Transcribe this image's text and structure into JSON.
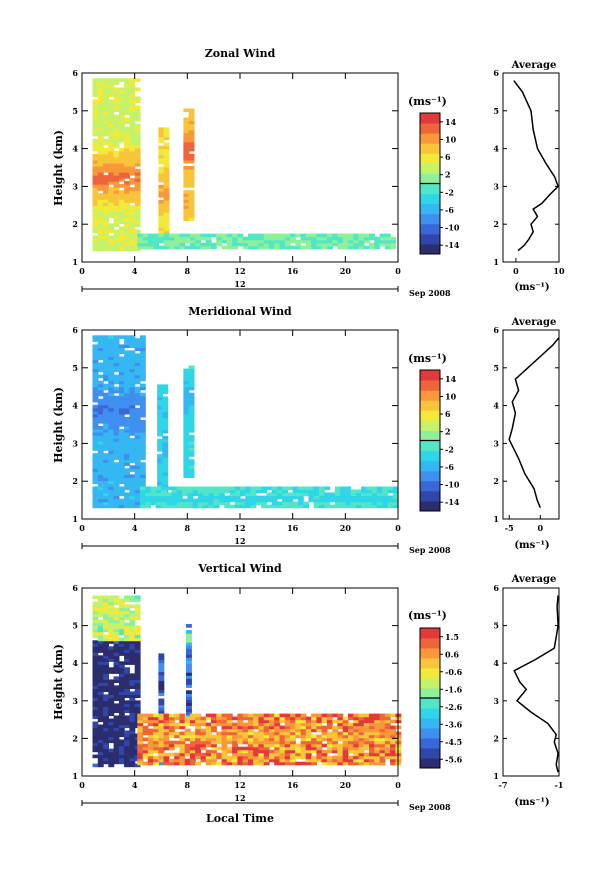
{
  "figure": {
    "date_label": "Sep 2008",
    "x_label": "Local Time",
    "colorbar_unit": "(ms⁻¹)",
    "profile_unit": "(ms⁻¹)"
  },
  "colors": {
    "colormap": [
      "#2b2d6e",
      "#3046a8",
      "#3a67d8",
      "#3f8ff0",
      "#35b7f2",
      "#2fd6e8",
      "#52e6c6",
      "#8ff09a",
      "#c6f26a",
      "#f2ea3a",
      "#f8c53a",
      "#f8983a",
      "#f0643a",
      "#e23a3a"
    ]
  },
  "chart_data": [
    {
      "type": "heatmap",
      "title": "Zonal Wind",
      "xlabel": "",
      "ylabel": "Height (km)",
      "xlim": [
        0,
        24
      ],
      "ylim": [
        1,
        6
      ],
      "x_ticks": [
        "0",
        "4",
        "8",
        "12",
        "16",
        "20",
        "0"
      ],
      "y_ticks": [
        "1",
        "2",
        "3",
        "4",
        "5",
        "6"
      ],
      "day_label": "12",
      "colorbar": {
        "ticks": [
          "14",
          "10",
          "6",
          "2",
          "-2",
          "-6",
          "-10",
          "-14"
        ],
        "range": [
          -16,
          16
        ]
      },
      "regions": [
        {
          "x": [
            0.8,
            4.2
          ],
          "y": [
            1.3,
            5.8
          ],
          "base": 4,
          "core": 12,
          "core_y": [
            2.2,
            4.2
          ]
        },
        {
          "x": [
            5.8,
            6.3
          ],
          "y": [
            1.6,
            4.5
          ],
          "base": 6,
          "core": 10,
          "core_y": [
            2.0,
            3.5
          ]
        },
        {
          "x": [
            7.7,
            8.4
          ],
          "y": [
            2.1,
            5.0
          ],
          "base": 8,
          "core": 13,
          "core_y": [
            3.3,
            4.6
          ]
        },
        {
          "x": [
            4.2,
            23.5
          ],
          "y": [
            1.35,
            1.75
          ],
          "base": 0,
          "core": 0,
          "core_y": [
            1.4,
            1.6
          ]
        }
      ],
      "profile": {
        "title": "Average",
        "xlim": [
          -3,
          10
        ],
        "x_ticks": [
          "0",
          "10"
        ],
        "y_ticks": [
          "1",
          "2",
          "3",
          "4",
          "5",
          "6"
        ],
        "points": [
          [
            0.5,
            1.3
          ],
          [
            2,
            1.45
          ],
          [
            3,
            1.6
          ],
          [
            4,
            1.8
          ],
          [
            3.5,
            2.0
          ],
          [
            5,
            2.2
          ],
          [
            4,
            2.4
          ],
          [
            6,
            2.55
          ],
          [
            8,
            2.8
          ],
          [
            9.8,
            3.0
          ],
          [
            9,
            3.25
          ],
          [
            7,
            3.6
          ],
          [
            5,
            4.0
          ],
          [
            4,
            4.5
          ],
          [
            3.5,
            5.0
          ],
          [
            1.5,
            5.5
          ],
          [
            -0.5,
            5.8
          ]
        ]
      }
    },
    {
      "type": "heatmap",
      "title": "Meridional Wind",
      "xlabel": "",
      "ylabel": "Height (km)",
      "xlim": [
        0,
        24
      ],
      "ylim": [
        1,
        6
      ],
      "x_ticks": [
        "0",
        "4",
        "8",
        "12",
        "16",
        "20",
        "0"
      ],
      "y_ticks": [
        "1",
        "2",
        "3",
        "4",
        "5",
        "6"
      ],
      "day_label": "12",
      "colorbar": {
        "ticks": [
          "14",
          "10",
          "6",
          "2",
          "-2",
          "-6",
          "-10",
          "-14"
        ],
        "range": [
          -16,
          16
        ]
      },
      "regions": [
        {
          "x": [
            0.8,
            4.4
          ],
          "y": [
            1.3,
            5.8
          ],
          "base": -6,
          "core": -9,
          "core_y": [
            3.0,
            4.7
          ]
        },
        {
          "x": [
            5.7,
            6.3
          ],
          "y": [
            1.6,
            4.5
          ],
          "base": -4,
          "core": -5,
          "core_y": [
            2.0,
            3.5
          ]
        },
        {
          "x": [
            7.7,
            8.3
          ],
          "y": [
            2.1,
            5.0
          ],
          "base": -3,
          "core": -6,
          "core_y": [
            3.5,
            4.8
          ]
        },
        {
          "x": [
            4.4,
            23.8
          ],
          "y": [
            1.3,
            1.85
          ],
          "base": -2,
          "core": -4,
          "core_y": [
            1.4,
            1.6
          ]
        }
      ],
      "profile": {
        "title": "Average",
        "xlim": [
          -6,
          3
        ],
        "x_ticks": [
          "-5",
          "0"
        ],
        "y_ticks": [
          "1",
          "2",
          "3",
          "4",
          "5",
          "6"
        ],
        "points": [
          [
            0,
            1.3
          ],
          [
            -0.5,
            1.5
          ],
          [
            -1,
            1.8
          ],
          [
            -2.5,
            2.2
          ],
          [
            -3.5,
            2.6
          ],
          [
            -5,
            3.1
          ],
          [
            -4.5,
            3.4
          ],
          [
            -4,
            3.8
          ],
          [
            -4.5,
            4.1
          ],
          [
            -3.5,
            4.4
          ],
          [
            -4,
            4.7
          ],
          [
            -2,
            5.0
          ],
          [
            0,
            5.3
          ],
          [
            2,
            5.6
          ],
          [
            3,
            5.8
          ]
        ]
      }
    },
    {
      "type": "heatmap",
      "title": "Vertical Wind",
      "xlabel": "Local Time",
      "ylabel": "Height (km)",
      "xlim": [
        0,
        24
      ],
      "ylim": [
        1,
        6
      ],
      "x_ticks": [
        "0",
        "4",
        "8",
        "12",
        "16",
        "20",
        "0"
      ],
      "y_ticks": [
        "1",
        "2",
        "3",
        "4",
        "5",
        "6"
      ],
      "day_label": "12",
      "colorbar": {
        "ticks": [
          "1.5",
          "0.6",
          "-0.6",
          "-1.6",
          "-2.6",
          "-3.6",
          "-4.5",
          "-5.6"
        ],
        "range": [
          -6.5,
          2.5
        ]
      },
      "regions": [
        {
          "x": [
            0.8,
            4.2
          ],
          "y": [
            1.25,
            4.6
          ],
          "base": -6.4,
          "core": -6.4,
          "core_y": [
            1.3,
            4.5
          ]
        },
        {
          "x": [
            0.8,
            4.2
          ],
          "y": [
            4.6,
            5.8
          ],
          "base": -1.4,
          "core": -1.0,
          "core_y": [
            5.0,
            5.8
          ]
        },
        {
          "x": [
            5.8,
            6.2
          ],
          "y": [
            1.3,
            4.2
          ],
          "base": -5.2,
          "core": -5.2,
          "core_y": [
            1.3,
            4.2
          ]
        },
        {
          "x": [
            7.9,
            8.3
          ],
          "y": [
            2.4,
            5.0
          ],
          "base": -5.0,
          "core": -1.2,
          "core_y": [
            4.3,
            5.0
          ]
        },
        {
          "x": [
            4.2,
            23.8
          ],
          "y": [
            1.3,
            2.6
          ],
          "base": 1.0,
          "core": 0.4,
          "core_y": [
            1.8,
            2.2
          ]
        }
      ],
      "profile": {
        "title": "Average",
        "xlim": [
          -7,
          -1
        ],
        "x_ticks": [
          "-7",
          "-1"
        ],
        "y_ticks": [
          "1",
          "2",
          "3",
          "4",
          "5",
          "6"
        ],
        "points": [
          [
            -1.1,
            1.1
          ],
          [
            -1.3,
            1.3
          ],
          [
            -1.1,
            1.6
          ],
          [
            -1.5,
            1.9
          ],
          [
            -1.3,
            2.1
          ],
          [
            -2.2,
            2.4
          ],
          [
            -4,
            2.7
          ],
          [
            -5.5,
            3.0
          ],
          [
            -4.5,
            3.3
          ],
          [
            -5.2,
            3.5
          ],
          [
            -5.8,
            3.8
          ],
          [
            -3.5,
            4.1
          ],
          [
            -1.5,
            4.4
          ],
          [
            -1.1,
            5.0
          ],
          [
            -1.2,
            5.5
          ],
          [
            -1.1,
            5.8
          ]
        ]
      }
    }
  ]
}
